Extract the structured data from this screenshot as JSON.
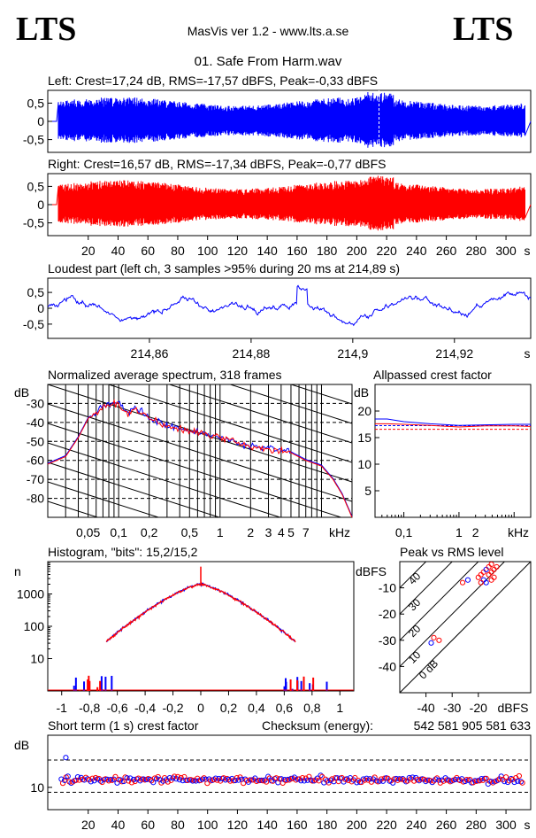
{
  "header": {
    "logo_left": "LTS",
    "logo_right": "LTS",
    "app_title": "MasVis ver 1.2 - www.lts.a.se",
    "file_title": "01. Safe From Harm.wav"
  },
  "colors": {
    "left": "#0000ff",
    "right": "#ff0000"
  },
  "chart_data": [
    {
      "id": "left",
      "type": "area",
      "title": "Left: Crest=17,24 dB, RMS=-17,57 dBFS, Peak=-0,33 dBFS",
      "ylim": [
        -0.85,
        0.85
      ],
      "xlim": [
        0,
        313
      ],
      "y_ticks": [
        "0,5",
        "0",
        "-0,5"
      ],
      "marker_x": 214.9
    },
    {
      "id": "right",
      "type": "area",
      "title": "Right: Crest=16,57 dB, RMS=-17,34 dBFS, Peak=-0,77 dBFS",
      "ylim": [
        -0.85,
        0.85
      ],
      "xlim": [
        0,
        313
      ],
      "y_ticks": [
        "0,5",
        "0",
        "-0,5"
      ],
      "x_ticks": [
        "20",
        "40",
        "60",
        "80",
        "100",
        "120",
        "140",
        "160",
        "180",
        "200",
        "220",
        "240",
        "260",
        "280",
        "300"
      ],
      "x_unit": "s"
    },
    {
      "id": "loudest",
      "type": "line",
      "title": "Loudest part (left  ch, 3 samples >95% during 20 ms at 214,89 s)",
      "ylim": [
        -0.95,
        0.95
      ],
      "xlim": [
        214.84,
        214.935
      ],
      "y_ticks": [
        "0,5",
        "0",
        "-0,5"
      ],
      "x_ticks": [
        "214,86",
        "214,88",
        "214,9",
        "214,92"
      ],
      "x_unit": "s"
    },
    {
      "id": "spectrum",
      "type": "line",
      "title": "Normalized average spectrum, 318 frames",
      "ylabel": "dB",
      "xlabel": "kHz",
      "ylim": [
        -90,
        -20
      ],
      "xlim": [
        0.02,
        20
      ],
      "y_ticks": [
        "-30",
        "-40",
        "-50",
        "-60",
        "-70",
        "-80"
      ],
      "x_ticks": [
        "0,05",
        "0,1",
        "0,2",
        "0,5",
        "1",
        "2",
        "3",
        "4",
        "5",
        "7"
      ],
      "x": [
        0.02,
        0.03,
        0.04,
        0.05,
        0.07,
        0.1,
        0.12,
        0.15,
        0.2,
        0.3,
        0.5,
        0.7,
        1,
        1.5,
        2,
        3,
        5,
        7,
        10,
        13,
        16,
        20
      ],
      "values": [
        -62,
        -58,
        -48,
        -38,
        -32,
        -30,
        -35,
        -33,
        -38,
        -42,
        -45,
        -46,
        -48,
        -51,
        -53,
        -54,
        -56,
        -60,
        -63,
        -70,
        -78,
        -90
      ]
    },
    {
      "id": "allpass_crest",
      "type": "line",
      "title": "Allpassed crest factor",
      "ylabel": "dB",
      "xlabel": "kHz",
      "ylim": [
        0,
        25
      ],
      "xlim": [
        0.03,
        20
      ],
      "y_ticks": [
        "20",
        "15",
        "10",
        "5"
      ],
      "x_ticks": [
        "0,1",
        "1",
        "2"
      ],
      "series": [
        {
          "x": [
            0.03,
            0.05,
            0.1,
            0.3,
            1,
            3,
            10,
            20
          ],
          "values": [
            18.5,
            18.5,
            18.0,
            17.6,
            17.3,
            17.4,
            17.5,
            17.5
          ]
        },
        {
          "x": [
            0.03,
            0.05,
            0.1,
            0.3,
            1,
            3,
            10,
            20
          ],
          "values": [
            17.6,
            17.6,
            17.5,
            17.3,
            17.0,
            17.2,
            17.2,
            17.1
          ]
        }
      ],
      "ref_levels": [
        17.24,
        16.57
      ]
    },
    {
      "id": "histogram",
      "type": "bar",
      "title": "Histogram, \"bits\": 15,2/15,2",
      "ylabel": "n",
      "ylim": [
        1,
        10000
      ],
      "xlim": [
        -1.1,
        1.1
      ],
      "y_scale": "log",
      "y_ticks": [
        "1000",
        "100",
        "10"
      ],
      "x_ticks": [
        "-1",
        "-0,8",
        "-0,6",
        "-0,4",
        "-0,2",
        "0",
        "0,2",
        "0,4",
        "0,6",
        "0,8",
        "1"
      ],
      "center_peak": 7000,
      "center_level": 2000
    },
    {
      "id": "peak_vs_rms",
      "type": "scatter",
      "title": "Peak vs RMS level",
      "ylabel": "dBFS",
      "xlabel": "dBFS",
      "xlim": [
        -50,
        0
      ],
      "ylim": [
        -50,
        0
      ],
      "y_ticks": [
        "-10",
        "-20",
        "-30",
        "-40"
      ],
      "x_ticks": [
        "-40",
        "-30",
        "-20"
      ],
      "diagonal_labels": [
        "40",
        "30",
        "20",
        "10",
        "0 dB"
      ],
      "points": [
        [
          -38,
          -31
        ],
        [
          -37,
          -29
        ],
        [
          -35,
          -30
        ],
        [
          -26,
          -8
        ],
        [
          -24,
          -7
        ],
        [
          -20,
          -6
        ],
        [
          -19,
          -5
        ],
        [
          -18,
          -4
        ],
        [
          -17,
          -3
        ],
        [
          -16,
          -2
        ],
        [
          -15,
          -1
        ],
        [
          -14,
          -3
        ],
        [
          -18,
          -7
        ],
        [
          -16,
          -5
        ],
        [
          -15,
          -4
        ],
        [
          -14,
          -6
        ],
        [
          -17,
          -8
        ],
        [
          -19,
          -8
        ],
        [
          -13,
          -2
        ],
        [
          -15,
          -7
        ]
      ]
    },
    {
      "id": "short_term_crest",
      "type": "scatter",
      "title": "Short term (1 s) crest factor",
      "ylabel": "dB",
      "xlim": [
        0,
        313
      ],
      "ylim": [
        0,
        30
      ],
      "y_ticks": [
        "10"
      ],
      "x_ticks": [
        "20",
        "40",
        "60",
        "80",
        "100",
        "120",
        "140",
        "160",
        "180",
        "200",
        "220",
        "240",
        "260",
        "280",
        "300"
      ],
      "x_unit": "s",
      "ref_lines": [
        20,
        7
      ],
      "typical": 12,
      "outlier": [
        5,
        21
      ]
    }
  ],
  "checksum": {
    "label": "Checksum (energy):",
    "value": "542 581 905 581 633"
  }
}
